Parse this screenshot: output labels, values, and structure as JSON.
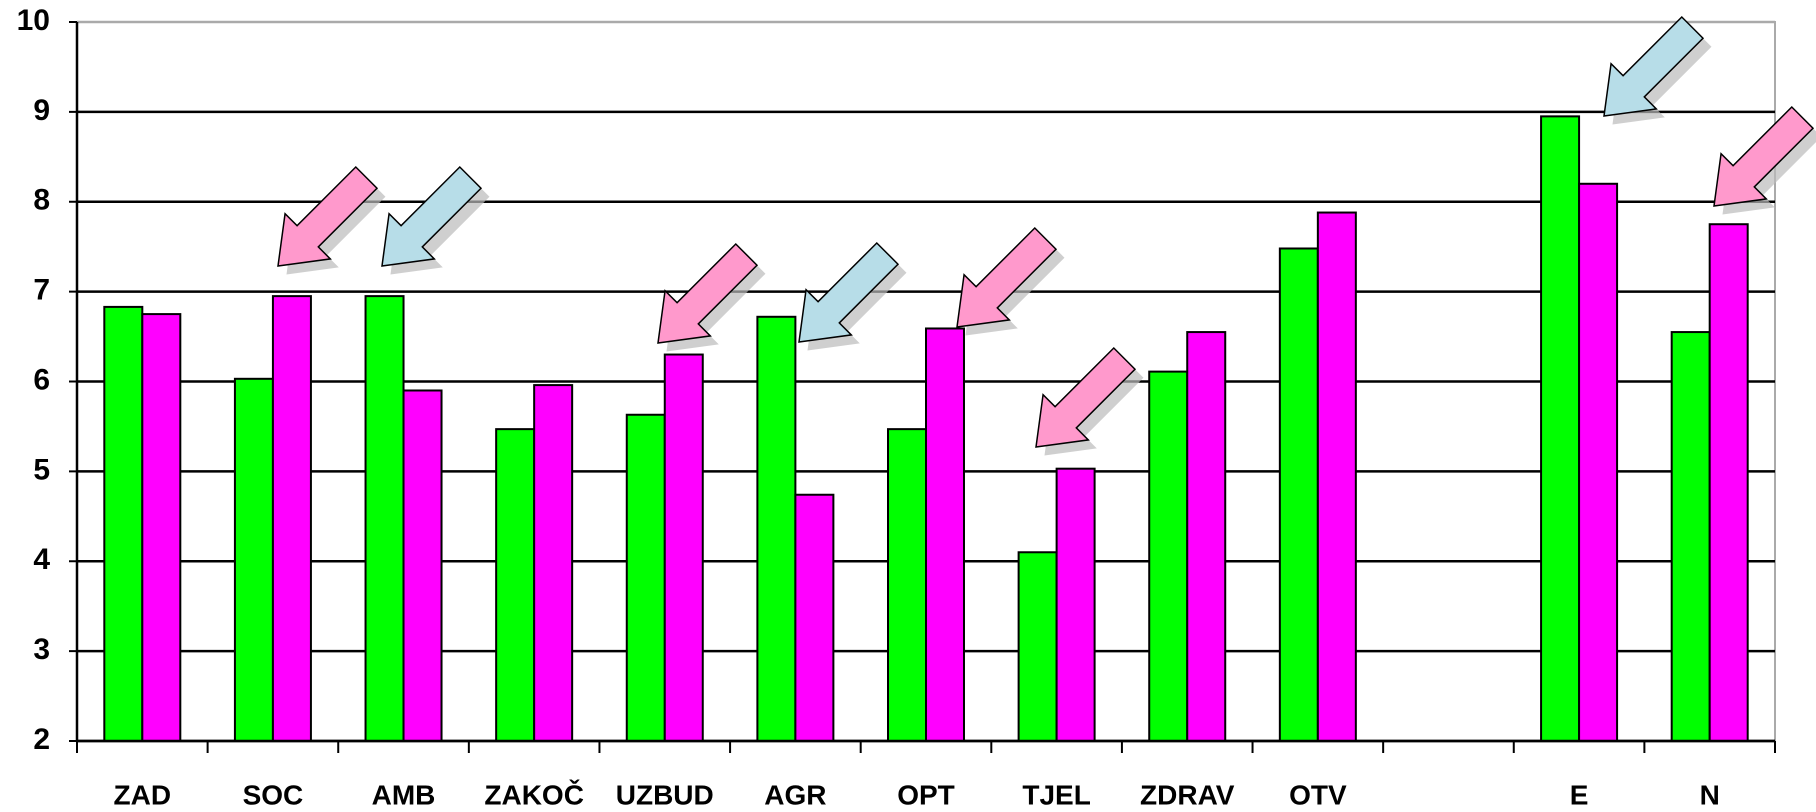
{
  "chart_data": {
    "type": "bar",
    "categories": [
      "ZAD",
      "SOC",
      "AMB",
      "ZAKOČ",
      "UZBUD",
      "AGR",
      "OPT",
      "TJEL",
      "ZDRAV",
      "OTV",
      null,
      "E",
      "N"
    ],
    "series": [
      {
        "color": "#00ff00",
        "values": [
          6.83,
          6.03,
          6.95,
          5.47,
          5.63,
          6.72,
          5.47,
          4.1,
          6.11,
          7.48,
          null,
          8.95,
          6.55
        ]
      },
      {
        "color": "#ff00ff",
        "values": [
          6.75,
          6.95,
          5.9,
          5.96,
          6.3,
          4.74,
          6.59,
          5.03,
          6.55,
          7.88,
          null,
          8.2,
          7.75
        ]
      }
    ],
    "ylim": [
      2,
      10
    ],
    "yticks": [
      2,
      3,
      4,
      5,
      6,
      7,
      8,
      9,
      10
    ],
    "grid": true
  }
}
